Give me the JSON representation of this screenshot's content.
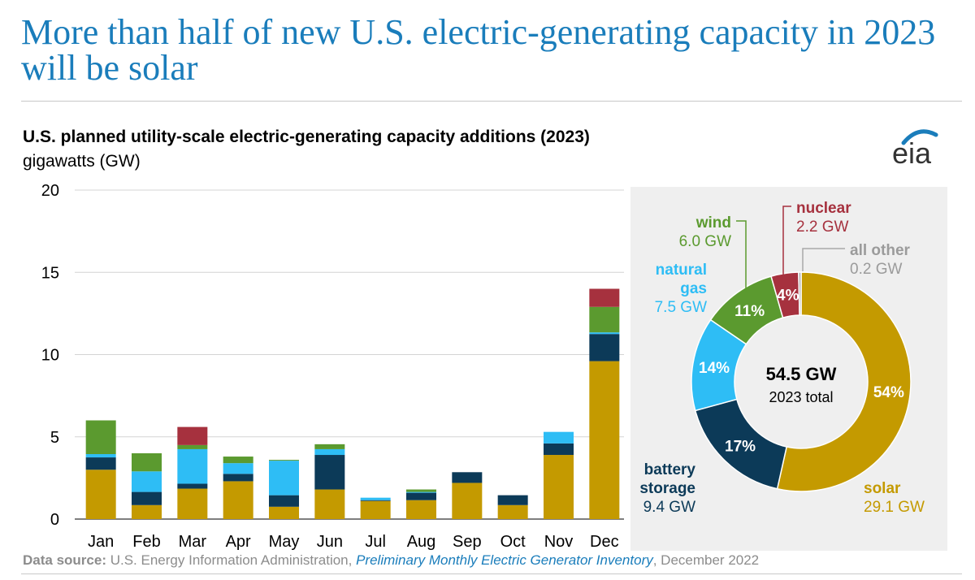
{
  "headline": "More than half of new U.S. electric-generating capacity in 2023 will be solar",
  "logo_text": "eia",
  "colors": {
    "solar": "#c49a00",
    "battery storage": "#0c3a58",
    "natural gas": "#2ebdf5",
    "wind": "#5b9a2f",
    "nuclear": "#a6313e",
    "all other": "#a8a8a8",
    "headline": "#1a7dbb"
  },
  "chart_data": [
    {
      "type": "bar",
      "stacked": true,
      "title": "U.S. planned utility-scale electric-generating capacity additions (2023)",
      "ylabel": "gigawatts (GW)",
      "ylim": [
        0,
        20
      ],
      "yticks": [
        0,
        5,
        10,
        15,
        20
      ],
      "grid": true,
      "categories": [
        "Jan",
        "Feb",
        "Mar",
        "Apr",
        "May",
        "Jun",
        "Jul",
        "Aug",
        "Sep",
        "Oct",
        "Nov",
        "Dec"
      ],
      "series": [
        {
          "name": "solar",
          "values": [
            3.0,
            0.85,
            1.85,
            2.3,
            0.75,
            1.8,
            1.1,
            1.15,
            2.2,
            0.85,
            3.9,
            9.6
          ]
        },
        {
          "name": "battery storage",
          "values": [
            0.75,
            0.8,
            0.3,
            0.45,
            0.7,
            2.1,
            0.05,
            0.45,
            0.65,
            0.6,
            0.7,
            1.65
          ]
        },
        {
          "name": "natural gas",
          "values": [
            0.2,
            1.25,
            2.1,
            0.65,
            2.1,
            0.35,
            0.15,
            0.05,
            0.0,
            0.0,
            0.7,
            0.1
          ]
        },
        {
          "name": "wind",
          "values": [
            2.05,
            1.1,
            0.25,
            0.4,
            0.05,
            0.3,
            0.0,
            0.15,
            0.0,
            0.0,
            0.0,
            1.55
          ]
        },
        {
          "name": "nuclear",
          "values": [
            0.0,
            0.0,
            1.1,
            0.0,
            0.0,
            0.0,
            0.0,
            0.0,
            0.0,
            0.0,
            0.0,
            1.1
          ]
        },
        {
          "name": "all other",
          "values": [
            0.0,
            0.0,
            0.0,
            0.0,
            0.0,
            0.0,
            0.0,
            0.0,
            0.0,
            0.0,
            0.0,
            0.0
          ]
        }
      ]
    },
    {
      "type": "pie",
      "donut": true,
      "center_value": "54.5 GW",
      "center_label": "2023 total",
      "slices": [
        {
          "name": "solar",
          "value": 29.1,
          "percent": "54%",
          "legend": [
            "solar"
          ],
          "value_label": "29.1 GW"
        },
        {
          "name": "battery storage",
          "value": 9.4,
          "percent": "17%",
          "legend": [
            "battery",
            "storage"
          ],
          "value_label": "9.4 GW"
        },
        {
          "name": "natural gas",
          "value": 7.5,
          "percent": "14%",
          "legend": [
            "natural",
            "gas"
          ],
          "value_label": "7.5 GW"
        },
        {
          "name": "wind",
          "value": 6.0,
          "percent": "11%",
          "legend": [
            "wind"
          ],
          "value_label": "6.0 GW"
        },
        {
          "name": "nuclear",
          "value": 2.2,
          "percent": "4%",
          "legend": [
            "nuclear"
          ],
          "value_label": "2.2 GW"
        },
        {
          "name": "all other",
          "value": 0.2,
          "percent": "",
          "legend": [
            "all other"
          ],
          "value_label": "0.2 GW"
        }
      ]
    }
  ],
  "source": {
    "label": "Data source:",
    "text_before": "U.S. Energy Information Administration,",
    "publication": "Preliminary Monthly Electric Generator Inventory",
    "text_after": ", December 2022"
  }
}
